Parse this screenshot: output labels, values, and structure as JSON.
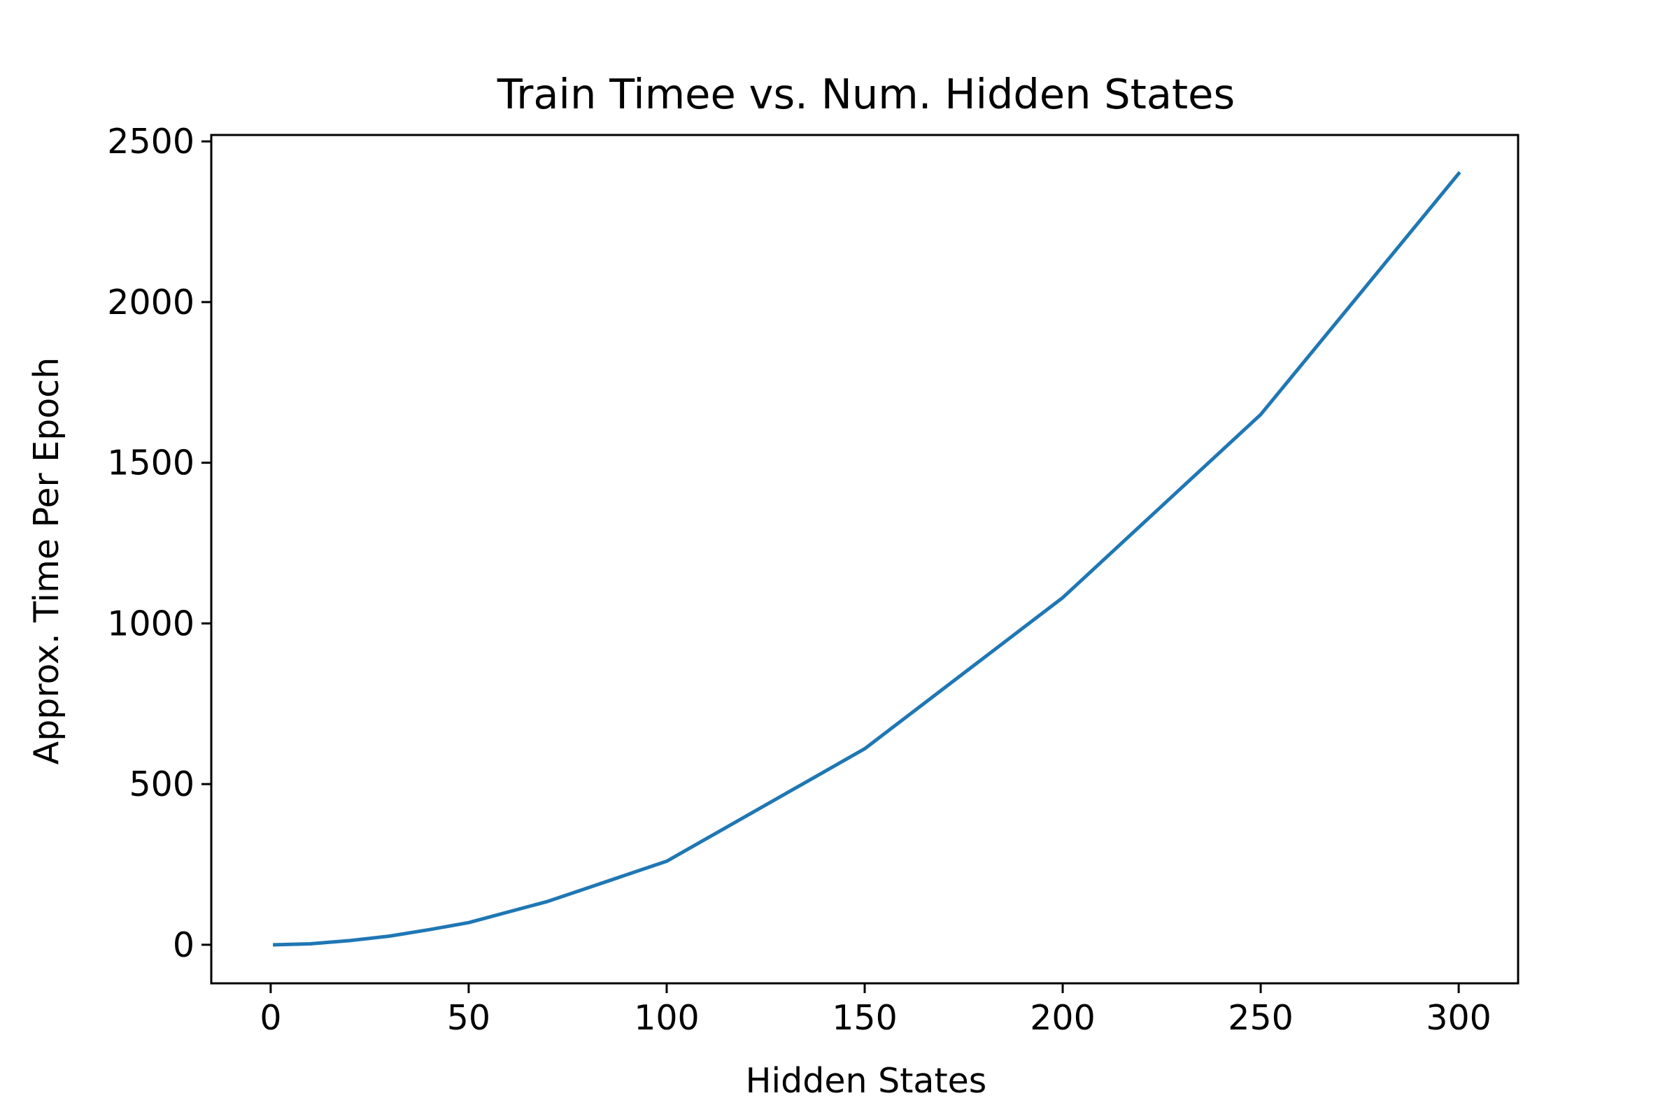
{
  "chart_data": {
    "type": "line",
    "title": "Train Timee vs. Num. Hidden States",
    "xlabel": "Hidden States",
    "ylabel": "Approx. Time Per Epoch",
    "xlim": [
      -15,
      315
    ],
    "ylim": [
      -120,
      2520
    ],
    "xticks": [
      0,
      50,
      100,
      150,
      200,
      250,
      300
    ],
    "yticks": [
      0,
      500,
      1000,
      1500,
      2000,
      2500
    ],
    "xtick_labels": [
      "0",
      "50",
      "100",
      "150",
      "200",
      "250",
      "300"
    ],
    "ytick_labels": [
      "0",
      "500",
      "1000",
      "1500",
      "2000",
      "2500"
    ],
    "grid": false,
    "series": [
      {
        "color": "#1f77b4",
        "x": [
          1,
          10,
          20,
          30,
          40,
          50,
          70,
          100,
          150,
          200,
          250,
          300
        ],
        "y": [
          0,
          3,
          13,
          27,
          47,
          69,
          135,
          260,
          610,
          1080,
          1650,
          2400
        ]
      }
    ]
  }
}
